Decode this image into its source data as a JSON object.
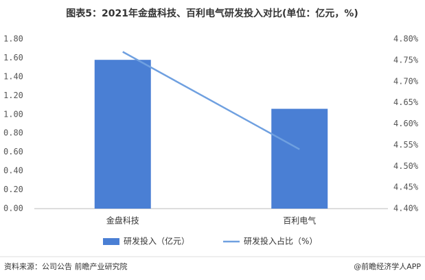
{
  "chart_data": {
    "type": "bar",
    "title": "图表5：2021年金盘科技、百利电气研发投入对比(单位：亿元，%)",
    "categories": [
      "金盘科技",
      "百利电气"
    ],
    "series": [
      {
        "name": "研发投入（亿元）",
        "type": "bar",
        "color": "#4a7fd4",
        "values": [
          1.58,
          1.06
        ]
      },
      {
        "name": "研发投入占比（%）",
        "type": "line",
        "axis": "y2",
        "color": "#6fa0e0",
        "values": [
          4.77,
          4.54
        ]
      }
    ],
    "ylim": [
      0,
      1.8
    ],
    "yticks": [
      {
        "value": 0,
        "label": "0.00"
      },
      {
        "value": 0.2,
        "label": "0.20"
      },
      {
        "value": 0.4,
        "label": "0.40"
      },
      {
        "value": 0.6,
        "label": "0.60"
      },
      {
        "value": 0.8,
        "label": "0.80"
      },
      {
        "value": 1.0,
        "label": "1.00"
      },
      {
        "value": 1.2,
        "label": "1.20"
      },
      {
        "value": 1.4,
        "label": "1.40"
      },
      {
        "value": 1.6,
        "label": "1.60"
      },
      {
        "value": 1.8,
        "label": "1.80"
      }
    ],
    "y2lim": [
      4.4,
      4.8
    ],
    "y2ticks": [
      {
        "value": 4.4,
        "label": "4.40%"
      },
      {
        "value": 4.45,
        "label": "4.45%"
      },
      {
        "value": 4.5,
        "label": "4.50%"
      },
      {
        "value": 4.55,
        "label": "4.55%"
      },
      {
        "value": 4.6,
        "label": "4.60%"
      },
      {
        "value": 4.65,
        "label": "4.65%"
      },
      {
        "value": 4.7,
        "label": "4.70%"
      },
      {
        "value": 4.75,
        "label": "4.75%"
      },
      {
        "value": 4.8,
        "label": "4.80%"
      }
    ],
    "source": "资料来源：公司公告 前瞻产业研究院",
    "credit": "@前瞻经济学人APP"
  }
}
